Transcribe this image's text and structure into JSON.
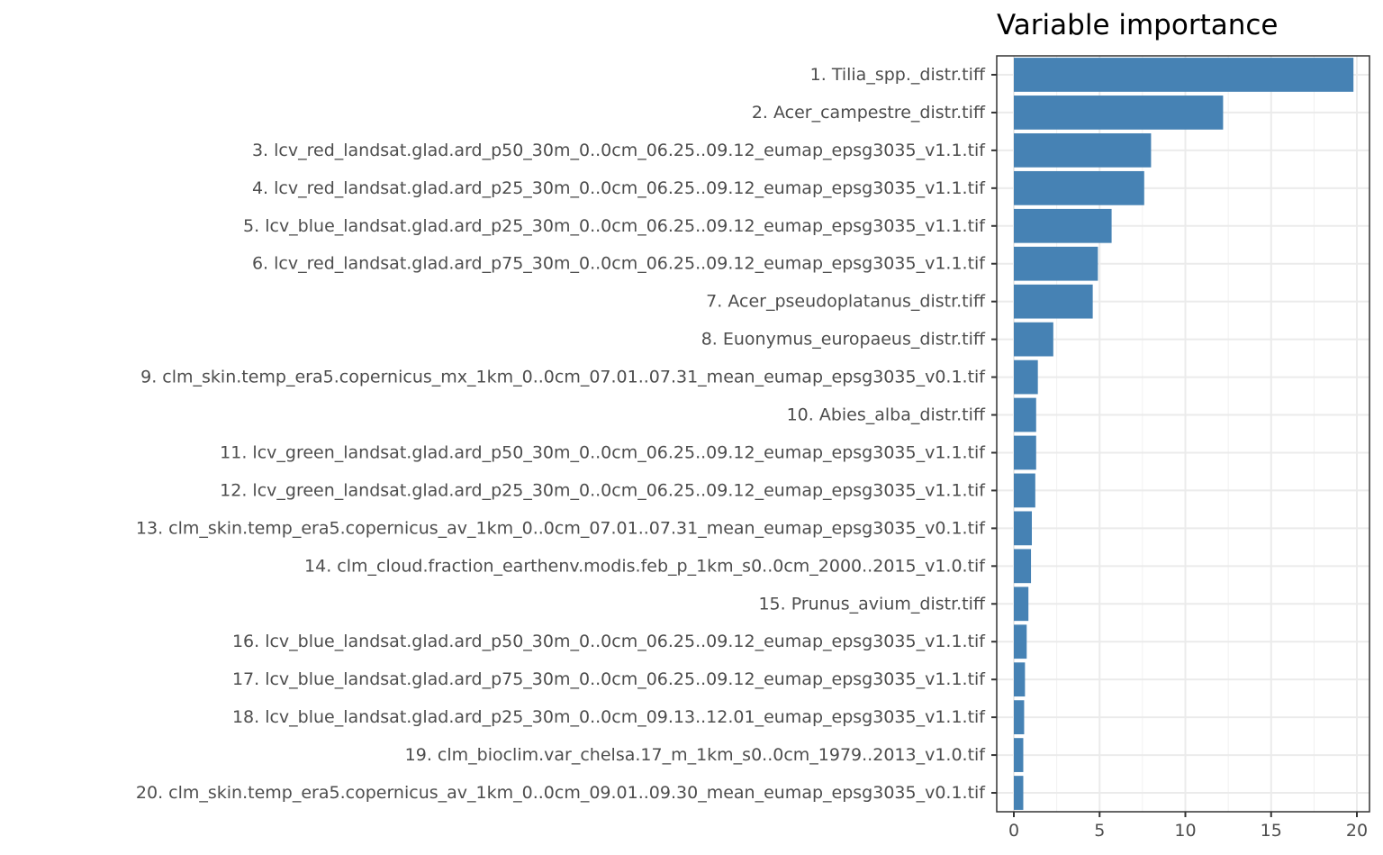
{
  "chart_data": {
    "type": "bar",
    "orientation": "horizontal",
    "title": "Variable importance",
    "xlabel": "",
    "ylabel": "",
    "xlim": [
      -0.7,
      20.7
    ],
    "xticks": [
      0,
      5,
      10,
      15,
      20
    ],
    "grid": true,
    "bar_color": "#4682b4",
    "categories": [
      "1. Tilia_spp._distr.tiff",
      "2. Acer_campestre_distr.tiff",
      "3. lcv_red_landsat.glad.ard_p50_30m_0..0cm_06.25..09.12_eumap_epsg3035_v1.1.tif",
      "4. lcv_red_landsat.glad.ard_p25_30m_0..0cm_06.25..09.12_eumap_epsg3035_v1.1.tif",
      "5. lcv_blue_landsat.glad.ard_p25_30m_0..0cm_06.25..09.12_eumap_epsg3035_v1.1.tif",
      "6. lcv_red_landsat.glad.ard_p75_30m_0..0cm_06.25..09.12_eumap_epsg3035_v1.1.tif",
      "7. Acer_pseudoplatanus_distr.tiff",
      "8. Euonymus_europaeus_distr.tiff",
      "9. clm_skin.temp_era5.copernicus_mx_1km_0..0cm_07.01..07.31_mean_eumap_epsg3035_v0.1.tif",
      "10. Abies_alba_distr.tiff",
      "11. lcv_green_landsat.glad.ard_p50_30m_0..0cm_06.25..09.12_eumap_epsg3035_v1.1.tif",
      "12. lcv_green_landsat.glad.ard_p25_30m_0..0cm_06.25..09.12_eumap_epsg3035_v1.1.tif",
      "13. clm_skin.temp_era5.copernicus_av_1km_0..0cm_07.01..07.31_mean_eumap_epsg3035_v0.1.tif",
      "14. clm_cloud.fraction_earthenv.modis.feb_p_1km_s0..0cm_2000..2015_v1.0.tif",
      "15. Prunus_avium_distr.tiff",
      "16. lcv_blue_landsat.glad.ard_p50_30m_0..0cm_06.25..09.12_eumap_epsg3035_v1.1.tif",
      "17. lcv_blue_landsat.glad.ard_p75_30m_0..0cm_06.25..09.12_eumap_epsg3035_v1.1.tif",
      "18. lcv_blue_landsat.glad.ard_p25_30m_0..0cm_09.13..12.01_eumap_epsg3035_v1.1.tif",
      "19. clm_bioclim.var_chelsa.17_m_1km_s0..0cm_1979..2013_v1.0.tif",
      "20. clm_skin.temp_era5.copernicus_av_1km_0..0cm_09.01..09.30_mean_eumap_epsg3035_v0.1.tif"
    ],
    "values": [
      19.8,
      12.2,
      8.0,
      7.6,
      5.7,
      4.9,
      4.6,
      2.3,
      1.4,
      1.3,
      1.3,
      1.25,
      1.05,
      1.0,
      0.85,
      0.75,
      0.65,
      0.6,
      0.55,
      0.55
    ]
  }
}
